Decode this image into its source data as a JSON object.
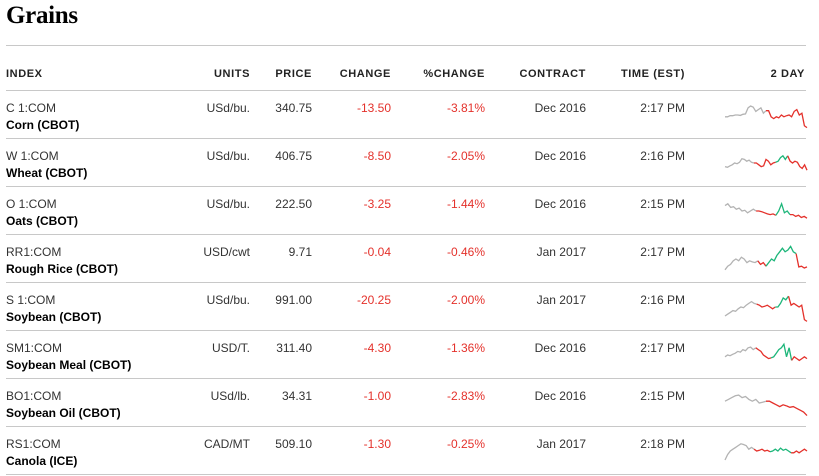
{
  "title": "Grains",
  "headers": {
    "index": "INDEX",
    "units": "UNITS",
    "price": "PRICE",
    "change": "CHANGE",
    "pct_change": "%CHANGE",
    "contract": "CONTRACT",
    "time": "TIME (EST)",
    "chart": "2 DAY"
  },
  "colors": {
    "negative": "#e4312b",
    "positive": "#1db67a",
    "neutral": "#b3b3b3"
  },
  "rows": [
    {
      "symbol": "C 1:COM",
      "name": "Corn (CBOT)",
      "units": "USd/bu.",
      "price": "340.75",
      "change": "-13.50",
      "pct_change": "-3.81%",
      "contract": "Dec 2016",
      "time": "2:17 PM",
      "spark": [
        [
          0.55,
          0.55,
          0.52,
          0.52,
          0.5,
          0.5,
          0.51,
          0.48,
          0.47,
          0.3,
          0.25,
          0.28,
          0.4,
          0.35,
          0.3,
          0.45,
          0.38
        ],
        [
          0.38,
          0.55,
          0.6,
          0.55,
          0.58,
          0.5,
          0.55,
          0.52,
          0.5,
          0.55,
          0.4,
          0.35,
          0.5,
          0.45,
          0.8,
          0.85
        ]
      ]
    },
    {
      "symbol": "W 1:COM",
      "name": "Wheat (CBOT)",
      "units": "USd/bu.",
      "price": "406.75",
      "change": "-8.50",
      "pct_change": "-2.05%",
      "contract": "Dec 2016",
      "time": "2:16 PM",
      "spark": [
        [
          0.6,
          0.62,
          0.58,
          0.55,
          0.5,
          0.52,
          0.48,
          0.38,
          0.4,
          0.45,
          0.42,
          0.48,
          0.5
        ],
        [
          0.5,
          0.55,
          0.6,
          0.58,
          0.4,
          0.45,
          0.55,
          0.5,
          0.48,
          0.45,
          0.5,
          0.45,
          0.48,
          0.6,
          0.65,
          0.55,
          0.7
        ]
      ],
      "spark_up": [
        0.45,
        0.35,
        0.3,
        0.4,
        0.3
      ]
    },
    {
      "symbol": "O 1:COM",
      "name": "Oats (CBOT)",
      "units": "USd/bu.",
      "price": "222.50",
      "change": "-3.25",
      "pct_change": "-1.44%",
      "contract": "Dec 2016",
      "time": "2:15 PM",
      "spark": [
        [
          0.35,
          0.3,
          0.4,
          0.38,
          0.45,
          0.42,
          0.5,
          0.48,
          0.55,
          0.5,
          0.45,
          0.5
        ],
        [
          0.5,
          0.52,
          0.55,
          0.58,
          0.6,
          0.58,
          0.62,
          0.6,
          0.65,
          0.62,
          0.68,
          0.65,
          0.7
        ]
      ],
      "spark_up": [
        0.5,
        0.3,
        0.55,
        0.5,
        0.6
      ]
    },
    {
      "symbol": "RR1:COM",
      "name": "Rough Rice (CBOT)",
      "units": "USD/cwt",
      "price": "9.71",
      "change": "-0.04",
      "pct_change": "-0.46%",
      "contract": "Jan 2017",
      "time": "2:17 PM",
      "spark": [
        [
          0.8,
          0.7,
          0.65,
          0.55,
          0.5,
          0.55,
          0.45,
          0.5,
          0.6,
          0.55,
          0.58,
          0.6,
          0.55
        ],
        [
          0.65,
          0.6,
          0.7,
          0.72,
          0.7,
          0.75,
          0.72
        ]
      ],
      "spark_up": [
        0.6,
        0.5,
        0.55,
        0.4,
        0.3,
        0.2,
        0.3,
        0.25,
        0.15,
        0.3,
        0.35
      ]
    },
    {
      "symbol": "S 1:COM",
      "name": "Soybean (CBOT)",
      "units": "USd/bu.",
      "price": "991.00",
      "change": "-20.25",
      "pct_change": "-2.00%",
      "contract": "Jan 2017",
      "time": "2:16 PM",
      "spark": [
        [
          0.75,
          0.7,
          0.65,
          0.6,
          0.62,
          0.55,
          0.5,
          0.52,
          0.45,
          0.4,
          0.35,
          0.4,
          0.42
        ],
        [
          0.45,
          0.5,
          0.48,
          0.45,
          0.5,
          0.55,
          0.5,
          0.45,
          0.4,
          0.45,
          0.5,
          0.45,
          0.85,
          0.9
        ]
      ],
      "spark_up": [
        0.5,
        0.4,
        0.25,
        0.3,
        0.2
      ]
    },
    {
      "symbol": "SM1:COM",
      "name": "Soybean Meal (CBOT)",
      "units": "USD/T.",
      "price": "311.40",
      "change": "-4.30",
      "pct_change": "-1.36%",
      "contract": "Dec 2016",
      "time": "2:17 PM",
      "spark": [
        [
          0.55,
          0.5,
          0.52,
          0.48,
          0.45,
          0.4,
          0.42,
          0.35,
          0.38,
          0.3,
          0.28,
          0.35,
          0.3
        ],
        [
          0.35,
          0.4,
          0.5,
          0.55,
          0.6,
          0.58,
          0.55,
          0.6,
          0.65,
          0.6,
          0.55,
          0.6
        ]
      ],
      "spark_up": [
        0.55,
        0.45,
        0.35,
        0.3,
        0.2,
        0.55,
        0.3,
        0.65
      ]
    },
    {
      "symbol": "BO1:COM",
      "name": "Soybean Oil (CBOT)",
      "units": "USd/lb.",
      "price": "34.31",
      "change": "-1.00",
      "pct_change": "-2.83%",
      "contract": "Dec 2016",
      "time": "2:15 PM",
      "spark": [
        [
          0.45,
          0.4,
          0.35,
          0.3,
          0.28,
          0.35,
          0.32,
          0.4,
          0.45,
          0.4,
          0.5,
          0.48,
          0.45
        ],
        [
          0.45,
          0.5,
          0.55,
          0.6,
          0.55,
          0.58,
          0.62,
          0.6,
          0.65,
          0.7,
          0.75,
          0.85
        ]
      ],
      "spark_up": []
    },
    {
      "symbol": "RS1:COM",
      "name": "Canola (ICE)",
      "units": "CAD/MT",
      "price": "509.10",
      "change": "-1.30",
      "pct_change": "-0.25%",
      "contract": "Jan 2017",
      "time": "2:18 PM",
      "spark": [
        [
          0.75,
          0.6,
          0.5,
          0.45,
          0.4,
          0.35,
          0.3,
          0.32,
          0.35,
          0.45,
          0.4,
          0.45
        ],
        [
          0.5,
          0.48,
          0.45,
          0.5,
          0.48,
          0.52,
          0.55,
          0.5,
          0.55,
          0.5,
          0.45,
          0.5
        ]
      ],
      "spark_up": [
        0.5,
        0.45,
        0.5,
        0.42,
        0.48,
        0.45,
        0.5,
        0.55
      ]
    }
  ]
}
